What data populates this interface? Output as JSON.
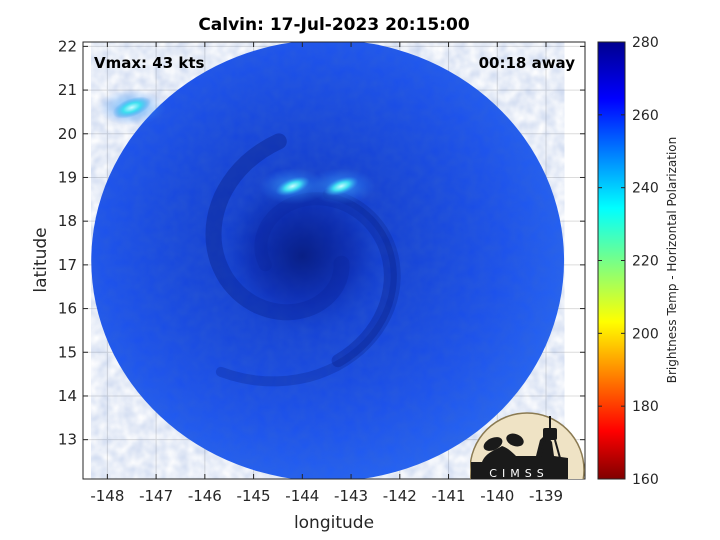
{
  "chart_data": {
    "type": "heatmap",
    "title": "Calvin: 17-Jul-2023 20:15:00",
    "xlabel": "longitude",
    "ylabel": "latitude",
    "xlim": [
      -148.5,
      -138.2
    ],
    "ylim": [
      12.1,
      22.1
    ],
    "xticks": [
      -148,
      -147,
      -146,
      -145,
      -144,
      -143,
      -142,
      -141,
      -140,
      -139
    ],
    "yticks": [
      13,
      14,
      15,
      16,
      17,
      18,
      19,
      20,
      21,
      22
    ],
    "grid": true,
    "annotations": {
      "vmax": "Vmax: 43 kts",
      "time_offset": "00:18 away"
    },
    "colorbar": {
      "label": "Brightness Temp - Horizontal Polarization",
      "range": [
        160,
        280
      ],
      "ticks": [
        160,
        180,
        200,
        220,
        240,
        260,
        280
      ],
      "colormap": "jet"
    },
    "swath": {
      "center_lon": -143.48,
      "center_lat": 17.1,
      "radius_lon": 4.85,
      "radius_lat": 5.05
    },
    "storm_center": {
      "lon": -144.0,
      "lat": 17.2
    },
    "values_estimate": {
      "background": 258,
      "eye_core": 268,
      "rainband_min": 232
    },
    "warm_features": [
      {
        "lon": -144.2,
        "lat": 18.8,
        "value": 232
      },
      {
        "lon": -143.2,
        "lat": 18.8,
        "value": 236
      },
      {
        "lon": -147.5,
        "lat": 20.6,
        "value": 244
      }
    ]
  },
  "logo": {
    "text": "CIMSS"
  },
  "colors": {
    "background": "#ffffff",
    "axis": "#262626",
    "grid": "#dcdcdc",
    "jet_stops": [
      "#800000",
      "#ff0000",
      "#ffff00",
      "#00ffff",
      "#0000ff",
      "#00008f"
    ]
  }
}
